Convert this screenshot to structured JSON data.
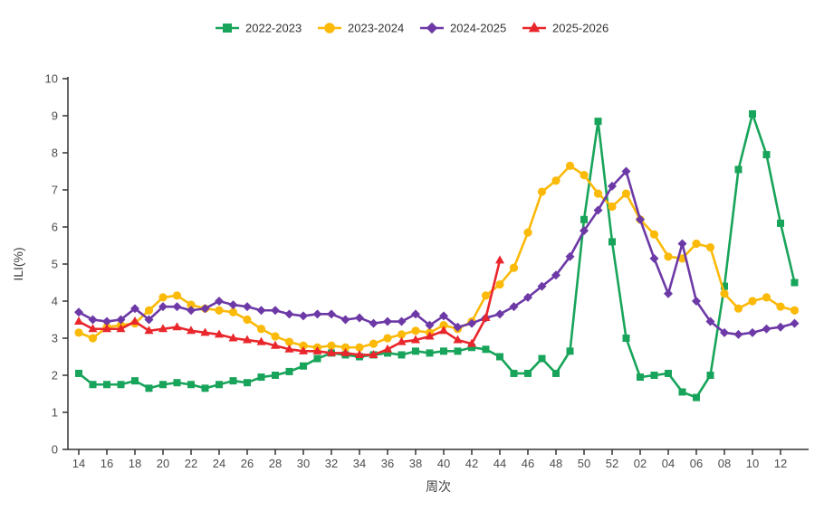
{
  "chart_data": {
    "type": "line",
    "title": "",
    "xlabel": "周次",
    "ylabel": "ILI(%)",
    "ylim": [
      0,
      10
    ],
    "y_ticks": [
      0,
      1,
      2,
      3,
      4,
      5,
      6,
      7,
      8,
      9,
      10
    ],
    "grid": false,
    "legend_position": "top-center",
    "x_categories": [
      "14",
      "15",
      "16",
      "17",
      "18",
      "19",
      "20",
      "21",
      "22",
      "23",
      "24",
      "25",
      "26",
      "27",
      "28",
      "29",
      "30",
      "31",
      "32",
      "33",
      "34",
      "35",
      "36",
      "37",
      "38",
      "39",
      "40",
      "41",
      "42",
      "43",
      "44",
      "45",
      "46",
      "47",
      "48",
      "49",
      "50",
      "51",
      "52",
      "01",
      "02",
      "03",
      "04",
      "05",
      "06",
      "07",
      "08",
      "09",
      "10",
      "11",
      "12",
      "13"
    ],
    "x_tick_labels": [
      "14",
      "16",
      "18",
      "20",
      "22",
      "24",
      "26",
      "28",
      "30",
      "32",
      "34",
      "36",
      "38",
      "40",
      "42",
      "44",
      "46",
      "48",
      "50",
      "52",
      "02",
      "04",
      "06",
      "08",
      "10",
      "12"
    ],
    "axis_color": "#333333",
    "tick_text_color": "#4d4d4d",
    "series": [
      {
        "name": "2022-2023",
        "color": "#18a45a",
        "marker": "square",
        "values": [
          2.05,
          1.75,
          1.75,
          1.75,
          1.85,
          1.65,
          1.75,
          1.8,
          1.75,
          1.65,
          1.75,
          1.85,
          1.8,
          1.95,
          2.0,
          2.1,
          2.25,
          2.45,
          2.6,
          2.55,
          2.5,
          2.55,
          2.6,
          2.55,
          2.65,
          2.6,
          2.65,
          2.65,
          2.75,
          2.7,
          2.5,
          2.05,
          2.05,
          2.45,
          2.05,
          2.65,
          6.2,
          8.85,
          5.6,
          3.0,
          1.95,
          2.0,
          2.05,
          1.55,
          1.4,
          2.0,
          4.4,
          7.55,
          9.05,
          7.95,
          6.1,
          4.5
        ]
      },
      {
        "name": "2023-2024",
        "color": "#fbb908",
        "marker": "circle",
        "values": [
          3.15,
          3.0,
          3.3,
          3.35,
          3.4,
          3.75,
          4.1,
          4.15,
          3.9,
          3.8,
          3.75,
          3.7,
          3.5,
          3.25,
          3.05,
          2.9,
          2.8,
          2.75,
          2.8,
          2.75,
          2.75,
          2.85,
          3.0,
          3.1,
          3.2,
          3.15,
          3.35,
          3.25,
          3.45,
          4.15,
          4.45,
          4.9,
          5.85,
          6.95,
          7.25,
          7.65,
          7.4,
          6.9,
          6.55,
          6.9,
          6.2,
          5.8,
          5.2,
          5.15,
          5.55,
          5.45,
          4.2,
          3.8,
          4.0,
          4.1,
          3.85,
          3.75
        ]
      },
      {
        "name": "2024-2025",
        "color": "#6d39a6",
        "marker": "diamond",
        "values": [
          3.7,
          3.5,
          3.45,
          3.5,
          3.8,
          3.5,
          3.85,
          3.85,
          3.75,
          3.8,
          4.0,
          3.9,
          3.85,
          3.75,
          3.75,
          3.65,
          3.6,
          3.65,
          3.65,
          3.5,
          3.55,
          3.4,
          3.45,
          3.45,
          3.65,
          3.35,
          3.6,
          3.3,
          3.4,
          3.55,
          3.65,
          3.85,
          4.1,
          4.4,
          4.7,
          5.2,
          5.9,
          6.45,
          7.1,
          7.5,
          6.2,
          5.15,
          4.2,
          5.55,
          4.0,
          3.45,
          3.15,
          3.1,
          3.15,
          3.25,
          3.3,
          3.4
        ]
      },
      {
        "name": "2025-2026",
        "color": "#e9262b",
        "marker": "triangle",
        "values": [
          3.45,
          3.25,
          3.25,
          3.25,
          3.45,
          3.2,
          3.25,
          3.3,
          3.2,
          3.15,
          3.1,
          3.0,
          2.95,
          2.9,
          2.8,
          2.7,
          2.65,
          2.65,
          2.6,
          2.6,
          2.55,
          2.55,
          2.7,
          2.9,
          2.95,
          3.05,
          3.2,
          2.95,
          2.85,
          3.55,
          5.1,
          null,
          null,
          null,
          null,
          null,
          null,
          null,
          null,
          null,
          null,
          null,
          null,
          null,
          null,
          null,
          null,
          null,
          null,
          null,
          null,
          null
        ]
      }
    ]
  }
}
